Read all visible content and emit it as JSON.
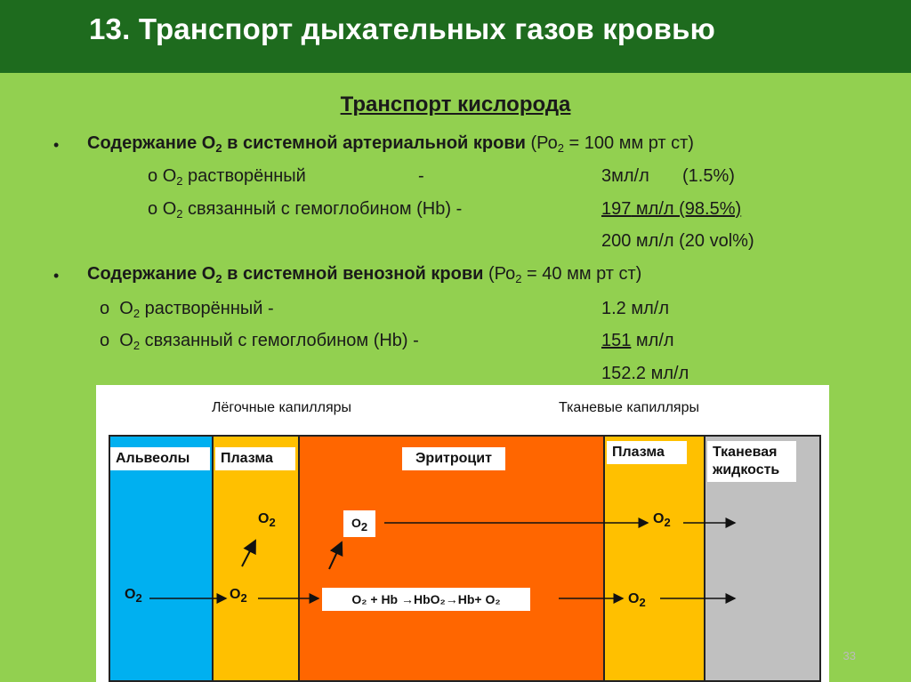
{
  "title": "13. Транспорт дыхательных газов кровью",
  "subtitle": "Транспорт кислорода",
  "arterial": {
    "bullet": "•",
    "heading_bold_1": "Содержание О",
    "heading_sub": "2",
    "heading_bold_2": " в системной артериальной крови",
    "heading_rest_1": " (Ро",
    "heading_rest_sub": "2",
    "heading_rest_2": " = 100 мм рт ст)",
    "items": [
      {
        "marker": "o",
        "prefix": "О",
        "sub": "2",
        "label": " растворённый",
        "dash": "-",
        "value": "3мл/л",
        "percent": "(1.5%)"
      },
      {
        "marker": "o",
        "prefix": "О",
        "sub": "2",
        "label": " связанный с гемоглобином (Hb) -",
        "dash": "",
        "value_underlined": "197",
        "value_rest": " мл/л (98.5%)"
      }
    ],
    "total": "200 мл/л (20 vol%)"
  },
  "venous": {
    "bullet": "•",
    "heading_bold_1": "Содержание О",
    "heading_sub": "2",
    "heading_bold_2": " в системной венозной крови",
    "heading_rest_1": " (Ро",
    "heading_rest_sub": "2",
    "heading_rest_2": " = 40 мм рт ст)",
    "items": [
      {
        "marker": "o",
        "prefix": "О",
        "sub": "2",
        "label": " растворённый -",
        "value": "1.2 мл/л"
      },
      {
        "marker": "o",
        "prefix": "О",
        "sub": "2",
        "label": " связанный с гемоглобином (Hb) -",
        "value_underlined": "151",
        "value_rest": " мл/л"
      }
    ],
    "total": "152.2 мл/л"
  },
  "diagram": {
    "top_left_label": "Лёгочные капилляры",
    "top_right_label": "Тканевые капилляры",
    "columns": [
      {
        "name": "Альвеолы",
        "color": "#00b0f0"
      },
      {
        "name": "Плазма",
        "color": "#ffc000"
      },
      {
        "name": "Эритроцит",
        "color": "#ff6600"
      },
      {
        "name": "Плазма",
        "color": "#ffc000"
      },
      {
        "name": "Тканевая жидкость",
        "color": "#c0c0c0"
      }
    ],
    "o2": "O",
    "o2_sub": "2",
    "reaction": "O₂ + Hb →HbO₂→Hb+ O₂"
  },
  "page_number": "33"
}
